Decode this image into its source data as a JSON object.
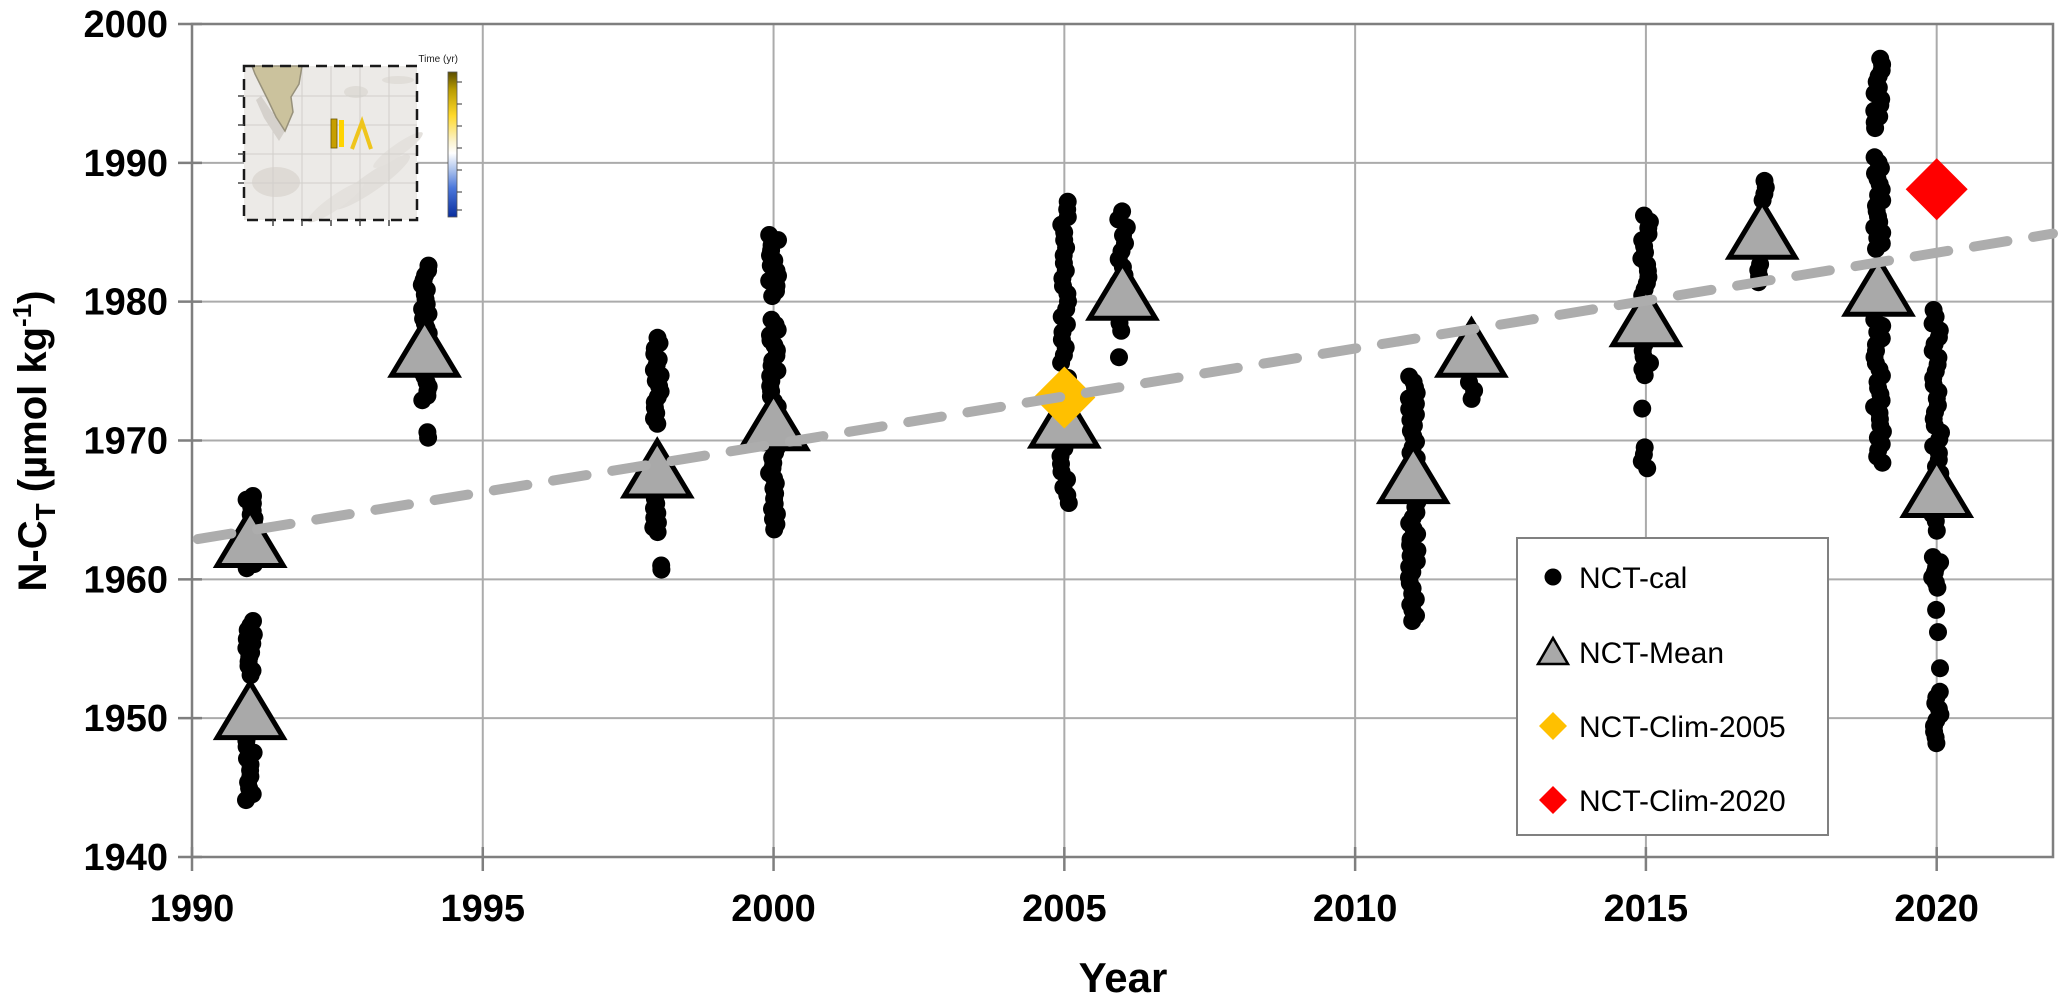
{
  "figure": {
    "x_axis": {
      "title": "Year",
      "min": 1990,
      "max": 2022,
      "ticks": [
        1990,
        1995,
        2000,
        2005,
        2010,
        2015,
        2020
      ]
    },
    "y_axis": {
      "title_main": "N-C",
      "title_sub": "T",
      "title_mid": " (µmol kg",
      "title_sup": "-1",
      "title_end": ")",
      "min": 1940,
      "max": 2000,
      "ticks": [
        2000,
        1990,
        1980,
        1970,
        1960,
        1950,
        1940
      ]
    },
    "legend": {
      "items": [
        {
          "marker": "black-dot",
          "label": "NCT-cal"
        },
        {
          "marker": "gray-triangle",
          "label": "NCT-Mean"
        },
        {
          "marker": "yellow-diamond",
          "label": "NCT-Clim-2005"
        },
        {
          "marker": "red-diamond",
          "label": "NCT-Clim-2020"
        }
      ]
    },
    "inset_map": {
      "colorbar_label": "Time (yr)"
    },
    "colors": {
      "dot": "#000000",
      "triangle_fill": "#A9A9A9",
      "triangle_stroke": "#000000",
      "clim2005": "#FFC000",
      "clim2020": "#FF0000",
      "trend": "#ADADAD",
      "grid": "#ABABAB",
      "border": "#7F7F7F"
    }
  },
  "chart_data": {
    "type": "scatter",
    "title": "",
    "xlabel": "Year",
    "ylabel": "N-CT (µmol kg-1)",
    "xlim": [
      1990,
      2022
    ],
    "ylim": [
      1940,
      2000
    ],
    "grid": true,
    "legend_position": "lower-right-inside",
    "series": [
      {
        "name": "NCT-cal",
        "marker": "circle",
        "color": "#000000",
        "note": "segments are [value_high, value_low, n_points] columns of individual calibrated samples",
        "clusters": [
          {
            "year": 1991,
            "segments": [
              [
                1966.0,
                1963.6,
                10
              ],
              [
                1961.1,
                1960.8,
                2
              ]
            ]
          },
          {
            "year": 1991,
            "segments": [
              [
                1957.0,
                1953.1,
                13
              ],
              [
                1948.8,
                1944.1,
                12
              ]
            ]
          },
          {
            "year": 1994,
            "segments": [
              [
                1982.6,
                1974.6,
                24
              ],
              [
                1974.2,
                1972.9,
                5
              ],
              [
                1970.6,
                1970.2,
                2
              ]
            ]
          },
          {
            "year": 1998,
            "segments": [
              [
                1977.4,
                1971.2,
                17
              ],
              [
                1965.8,
                1963.4,
                8
              ],
              [
                1961.0,
                1960.7,
                2
              ]
            ]
          },
          {
            "year": 2000,
            "segments": [
              [
                1984.8,
                1980.4,
                13
              ],
              [
                1978.7,
                1963.6,
                42
              ]
            ]
          },
          {
            "year": 2005,
            "segments": [
              [
                1987.2,
                1975.6,
                22
              ],
              [
                1974.5,
                1965.5,
                17
              ]
            ]
          },
          {
            "year": 2006,
            "segments": [
              [
                1986.5,
                1977.9,
                16
              ],
              [
                1976.1,
                1975.9,
                1
              ]
            ]
          },
          {
            "year": 2011,
            "segments": [
              [
                1974.6,
                1957.0,
                46
              ]
            ]
          },
          {
            "year": 2012,
            "segments": [
              [
                1974.2,
                1973.0,
                3
              ]
            ]
          },
          {
            "year": 2015,
            "segments": [
              [
                1986.2,
                1974.7,
                27
              ],
              [
                1972.4,
                1972.2,
                1
              ],
              [
                1969.5,
                1968.0,
                4
              ]
            ]
          },
          {
            "year": 2017,
            "segments": [
              [
                1988.7,
                1987.3,
                4
              ],
              [
                1982.7,
                1981.4,
                4
              ]
            ]
          },
          {
            "year": 2019,
            "segments": [
              [
                1997.5,
                1992.5,
                13
              ],
              [
                1990.4,
                1983.8,
                18
              ],
              [
                1978.7,
                1968.4,
                24
              ]
            ]
          },
          {
            "year": 2020,
            "segments": [
              [
                1979.4,
                1964.2,
                32
              ],
              [
                1963.6,
                1963.4,
                1
              ],
              [
                1961.6,
                1959.4,
                7
              ],
              [
                1957.9,
                1957.7,
                1
              ],
              [
                1956.3,
                1956.1,
                1
              ],
              [
                1953.7,
                1953.5,
                1
              ],
              [
                1951.9,
                1948.2,
                10
              ]
            ]
          }
        ]
      },
      {
        "name": "NCT-Mean",
        "marker": "triangle",
        "color": "#A9A9A9",
        "points": [
          {
            "year": 1991,
            "value": 1962.8
          },
          {
            "year": 1991,
            "value": 1950.4
          },
          {
            "year": 1994,
            "value": 1976.5
          },
          {
            "year": 1998,
            "value": 1967.8
          },
          {
            "year": 2000,
            "value": 1971.2
          },
          {
            "year": 2005,
            "value": 1971.4
          },
          {
            "year": 2006,
            "value": 1980.6
          },
          {
            "year": 2011,
            "value": 1967.4
          },
          {
            "year": 2012,
            "value": 1976.5
          },
          {
            "year": 2015,
            "value": 1978.7
          },
          {
            "year": 2017,
            "value": 1985.0
          },
          {
            "year": 2019,
            "value": 1980.9
          },
          {
            "year": 2020,
            "value": 1966.4
          }
        ]
      },
      {
        "name": "NCT-Clim-2005",
        "marker": "diamond",
        "color": "#FFC000",
        "points": [
          {
            "year": 2005,
            "value": 1973.1
          }
        ]
      },
      {
        "name": "NCT-Clim-2020",
        "marker": "diamond",
        "color": "#FF0000",
        "points": [
          {
            "year": 2020,
            "value": 1988.1
          }
        ]
      },
      {
        "name": "trendline",
        "marker": "dashed-line",
        "color": "#ADADAD",
        "x1": 1990.1,
        "y1": 1962.9,
        "x2": 2022.0,
        "y2": 1984.9
      }
    ]
  }
}
